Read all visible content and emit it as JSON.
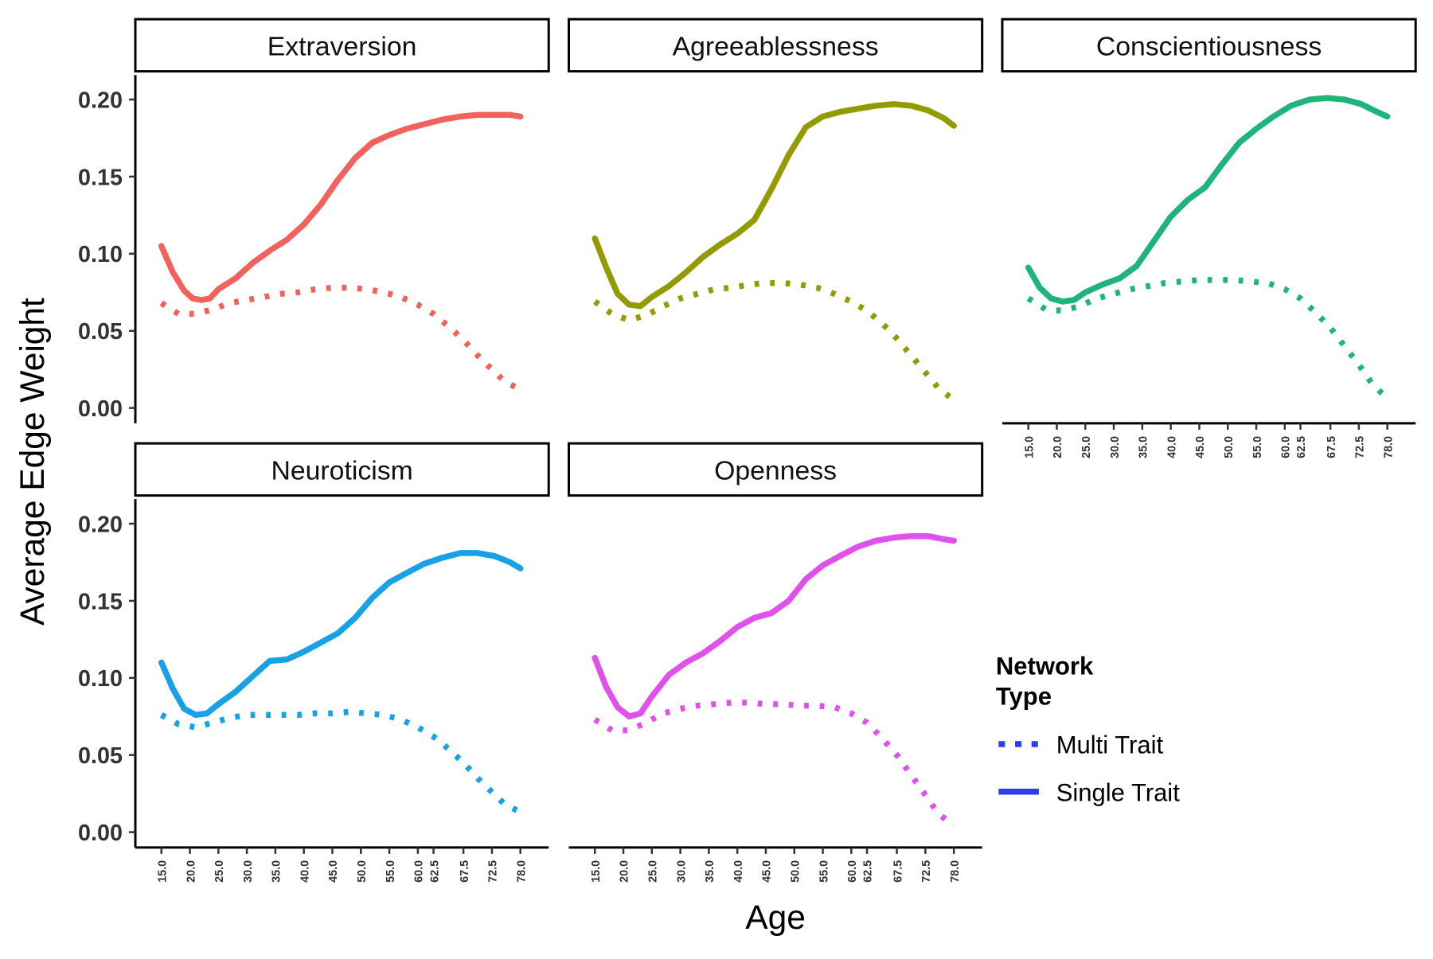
{
  "chart_data": {
    "type": "line",
    "layout": "facet-grid",
    "xlabel": "Age",
    "ylabel": "Average Edge Weight",
    "x_ticks": [
      15.0,
      20.0,
      25.0,
      30.0,
      35.0,
      40.0,
      45.0,
      50.0,
      55.0,
      60.0,
      62.5,
      67.5,
      72.5,
      78.0
    ],
    "x_tick_labels": [
      "15.0",
      "20.0",
      "25.0",
      "30.0",
      "35.0",
      "40.0",
      "45.0",
      "50.0",
      "55.0",
      "60.0",
      "62.5",
      "67.5",
      "72.5",
      "78.0"
    ],
    "y_ticks": [
      0.0,
      0.05,
      0.1,
      0.15,
      0.2
    ],
    "y_tick_labels": [
      "0.00",
      "0.05",
      "0.10",
      "0.15",
      "0.20"
    ],
    "ylim": [
      -0.004,
      0.21
    ],
    "grid": false,
    "legend": {
      "title": "Network\nType",
      "position": "right",
      "entries": [
        {
          "label": "Multi Trait",
          "style": "dotted",
          "color": "#2a3fe8"
        },
        {
          "label": "Single Trait",
          "style": "solid",
          "color": "#2a3fe8"
        }
      ]
    },
    "facets": [
      {
        "title": "Extraversion",
        "color": "#f0625b",
        "series": [
          {
            "name": "Single Trait",
            "style": "solid",
            "x": [
              15,
              17,
              19,
              20.5,
              22,
              23.5,
              25,
              28,
              31,
              34,
              37,
              40,
              43,
              46,
              49,
              52,
              55,
              58,
              61,
              64,
              67,
              70,
              73,
              76,
              78
            ],
            "y": [
              0.105,
              0.088,
              0.076,
              0.071,
              0.07,
              0.071,
              0.077,
              0.084,
              0.094,
              0.102,
              0.109,
              0.119,
              0.132,
              0.148,
              0.162,
              0.172,
              0.177,
              0.181,
              0.184,
              0.187,
              0.189,
              0.19,
              0.19,
              0.19,
              0.189
            ]
          },
          {
            "name": "Multi Trait",
            "style": "dotted",
            "x": [
              15,
              18,
              21,
              24,
              27,
              30,
              33,
              36,
              39,
              42,
              45,
              48,
              51,
              54,
              57,
              60,
              62.5,
              65,
              67.5,
              70,
              72.5,
              75,
              78
            ],
            "y": [
              0.068,
              0.061,
              0.061,
              0.064,
              0.068,
              0.07,
              0.072,
              0.074,
              0.075,
              0.077,
              0.078,
              0.078,
              0.077,
              0.075,
              0.072,
              0.067,
              0.061,
              0.053,
              0.044,
              0.034,
              0.025,
              0.017,
              0.012
            ]
          }
        ]
      },
      {
        "title": "Agreeablessness",
        "color": "#939b00",
        "series": [
          {
            "name": "Single Trait",
            "style": "solid",
            "x": [
              15,
              17,
              19,
              21,
              23,
              25,
              28,
              31,
              34,
              37,
              40,
              43,
              46,
              49,
              52,
              55,
              58,
              61,
              64,
              67,
              70,
              73,
              76,
              78
            ],
            "y": [
              0.11,
              0.091,
              0.074,
              0.067,
              0.066,
              0.072,
              0.079,
              0.088,
              0.098,
              0.106,
              0.113,
              0.122,
              0.142,
              0.164,
              0.182,
              0.189,
              0.192,
              0.194,
              0.196,
              0.197,
              0.196,
              0.193,
              0.188,
              0.183
            ]
          },
          {
            "name": "Multi Trait",
            "style": "dotted",
            "x": [
              15,
              18,
              21,
              24,
              27,
              30,
              33,
              36,
              39,
              42,
              45,
              48,
              51,
              54,
              57,
              60,
              62.5,
              65,
              67.5,
              70,
              72.5,
              75,
              78
            ],
            "y": [
              0.069,
              0.061,
              0.057,
              0.06,
              0.066,
              0.071,
              0.074,
              0.077,
              0.078,
              0.08,
              0.081,
              0.081,
              0.08,
              0.078,
              0.074,
              0.069,
              0.063,
              0.055,
              0.045,
              0.034,
              0.023,
              0.013,
              0.005
            ]
          }
        ]
      },
      {
        "title": "Conscientiousness",
        "color": "#1fb57a",
        "series": [
          {
            "name": "Single Trait",
            "style": "solid",
            "x": [
              15,
              17,
              19,
              21,
              23,
              25,
              28,
              31,
              34,
              37,
              40,
              43,
              46,
              49,
              52,
              55,
              58,
              61,
              64,
              67,
              70,
              73,
              76,
              78
            ],
            "y": [
              0.091,
              0.078,
              0.071,
              0.069,
              0.07,
              0.075,
              0.08,
              0.084,
              0.092,
              0.108,
              0.124,
              0.135,
              0.143,
              0.158,
              0.172,
              0.181,
              0.189,
              0.196,
              0.2,
              0.201,
              0.2,
              0.197,
              0.192,
              0.189
            ]
          },
          {
            "name": "Multi Trait",
            "style": "dotted",
            "x": [
              15,
              18,
              21,
              24,
              27,
              30,
              33,
              36,
              39,
              42,
              45,
              48,
              51,
              54,
              57,
              60,
              62.5,
              65,
              67.5,
              70,
              72.5,
              75,
              78
            ],
            "y": [
              0.071,
              0.064,
              0.063,
              0.066,
              0.071,
              0.074,
              0.077,
              0.079,
              0.081,
              0.082,
              0.083,
              0.083,
              0.083,
              0.082,
              0.081,
              0.077,
              0.071,
              0.062,
              0.052,
              0.04,
              0.028,
              0.016,
              0.006
            ]
          }
        ]
      },
      {
        "title": "Neuroticism",
        "color": "#17a1e6",
        "series": [
          {
            "name": "Single Trait",
            "style": "solid",
            "x": [
              15,
              17,
              19,
              21,
              23,
              25,
              28,
              31,
              34,
              37,
              40,
              43,
              46,
              49,
              52,
              55,
              58,
              61,
              64,
              67,
              70,
              73,
              76,
              78
            ],
            "y": [
              0.11,
              0.093,
              0.08,
              0.076,
              0.077,
              0.083,
              0.091,
              0.101,
              0.111,
              0.112,
              0.117,
              0.123,
              0.129,
              0.139,
              0.152,
              0.162,
              0.168,
              0.174,
              0.178,
              0.181,
              0.181,
              0.179,
              0.175,
              0.171
            ]
          },
          {
            "name": "Multi Trait",
            "style": "dotted",
            "x": [
              15,
              18,
              21,
              24,
              27,
              30,
              33,
              36,
              39,
              42,
              45,
              48,
              51,
              54,
              57,
              60,
              62.5,
              65,
              67.5,
              70,
              72.5,
              75,
              78
            ],
            "y": [
              0.076,
              0.07,
              0.068,
              0.071,
              0.074,
              0.076,
              0.076,
              0.076,
              0.076,
              0.077,
              0.077,
              0.078,
              0.077,
              0.076,
              0.073,
              0.068,
              0.062,
              0.054,
              0.045,
              0.035,
              0.026,
              0.018,
              0.013
            ]
          }
        ]
      },
      {
        "title": "Openness",
        "color": "#e051eb",
        "series": [
          {
            "name": "Single Trait",
            "style": "solid",
            "x": [
              15,
              17,
              19,
              21,
              23,
              25,
              28,
              31,
              34,
              37,
              40,
              43,
              46,
              49,
              52,
              55,
              58,
              61,
              64,
              67,
              70,
              73,
              76,
              78
            ],
            "y": [
              0.113,
              0.094,
              0.081,
              0.075,
              0.077,
              0.088,
              0.102,
              0.11,
              0.116,
              0.124,
              0.133,
              0.139,
              0.142,
              0.15,
              0.164,
              0.173,
              0.179,
              0.185,
              0.189,
              0.191,
              0.192,
              0.192,
              0.19,
              0.189
            ]
          },
          {
            "name": "Multi Trait",
            "style": "dotted",
            "x": [
              15,
              18,
              21,
              24,
              27,
              30,
              33,
              36,
              39,
              42,
              45,
              48,
              51,
              54,
              57,
              60,
              62.5,
              65,
              67.5,
              70,
              72.5,
              75,
              78
            ],
            "y": [
              0.073,
              0.066,
              0.066,
              0.071,
              0.077,
              0.08,
              0.082,
              0.083,
              0.084,
              0.084,
              0.083,
              0.083,
              0.082,
              0.082,
              0.081,
              0.077,
              0.071,
              0.061,
              0.05,
              0.037,
              0.024,
              0.012,
              0.004
            ]
          }
        ]
      }
    ]
  }
}
